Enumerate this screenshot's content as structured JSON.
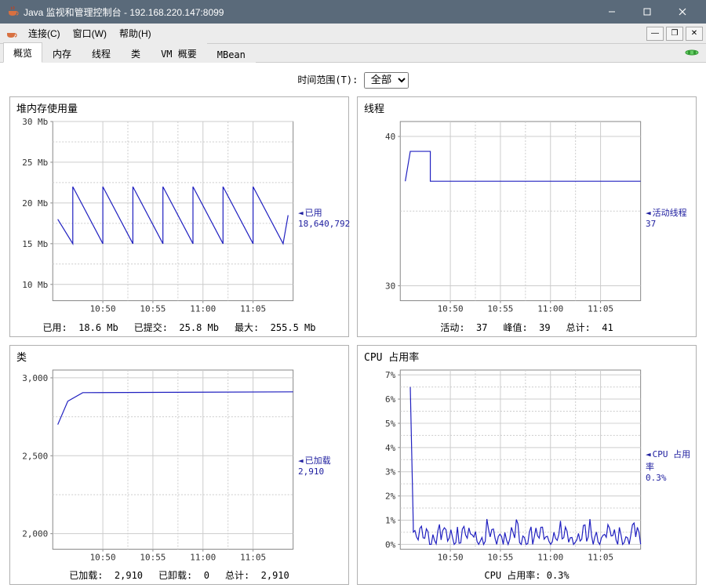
{
  "window": {
    "title": "Java 监视和管理控制台 - 192.168.220.147:8099"
  },
  "menubar": {
    "connect": "连接(C)",
    "window": "窗口(W)",
    "help": "帮助(H)"
  },
  "tabs": {
    "overview": "概览",
    "memory": "内存",
    "threads": "线程",
    "classes": "类",
    "vm": "VM 概要",
    "mbean": "MBean"
  },
  "time_range": {
    "label": "时间范围(T):",
    "selected": "全部"
  },
  "heap": {
    "title": "堆内存使用量",
    "side_label": "已用",
    "side_value": "18,640,792",
    "y_ticks": [
      "10 Mb",
      "15 Mb",
      "20 Mb",
      "25 Mb",
      "30 Mb"
    ],
    "y_vals": [
      10,
      15,
      20,
      25,
      30
    ],
    "x_ticks": [
      "10:50",
      "10:55",
      "11:00",
      "11:05"
    ],
    "x_vals": [
      50,
      55,
      60,
      65
    ],
    "x_range": [
      45,
      69
    ],
    "y_range": [
      8,
      30
    ],
    "series": [
      [
        45.5,
        18
      ],
      [
        47,
        15
      ],
      [
        47,
        22
      ],
      [
        50,
        15
      ],
      [
        50,
        22
      ],
      [
        53,
        15
      ],
      [
        53,
        22
      ],
      [
        56,
        15
      ],
      [
        56,
        22
      ],
      [
        59,
        15
      ],
      [
        59,
        22
      ],
      [
        62,
        15
      ],
      [
        62,
        22
      ],
      [
        65,
        15
      ],
      [
        65,
        22
      ],
      [
        68,
        15
      ],
      [
        68.5,
        18.5
      ]
    ],
    "footer": [
      {
        "k": "已用:",
        "v": "18.6  Mb"
      },
      {
        "k": "已提交:",
        "v": "25.8  Mb"
      },
      {
        "k": "最大:",
        "v": "255.5  Mb"
      }
    ],
    "line_color": "#2020c0"
  },
  "threads": {
    "title": "线程",
    "side_label": "活动线程",
    "side_value": "37",
    "y_ticks": [
      "30",
      "40"
    ],
    "y_vals": [
      30,
      40
    ],
    "x_ticks": [
      "10:50",
      "10:55",
      "11:00",
      "11:05"
    ],
    "x_vals": [
      50,
      55,
      60,
      65
    ],
    "x_range": [
      45,
      69
    ],
    "y_range": [
      29,
      41
    ],
    "series": [
      [
        45.5,
        37
      ],
      [
        46,
        39
      ],
      [
        48,
        39
      ],
      [
        48,
        37
      ],
      [
        69,
        37
      ]
    ],
    "footer": [
      {
        "k": "活动:",
        "v": "37"
      },
      {
        "k": "峰值:",
        "v": "39"
      },
      {
        "k": "总计:",
        "v": "41"
      }
    ],
    "line_color": "#2020c0"
  },
  "classes": {
    "title": "类",
    "side_label": "已加载",
    "side_value": "2,910",
    "y_ticks": [
      "2,000",
      "2,500",
      "3,000"
    ],
    "y_vals": [
      2000,
      2500,
      3000
    ],
    "x_ticks": [
      "10:50",
      "10:55",
      "11:00",
      "11:05"
    ],
    "x_vals": [
      50,
      55,
      60,
      65
    ],
    "x_range": [
      45,
      69
    ],
    "y_range": [
      1900,
      3050
    ],
    "series": [
      [
        45.5,
        2700
      ],
      [
        46.5,
        2850
      ],
      [
        48,
        2905
      ],
      [
        69,
        2910
      ]
    ],
    "footer": [
      {
        "k": "已加载:",
        "v": "2,910"
      },
      {
        "k": "已卸载:",
        "v": "0"
      },
      {
        "k": "总计:",
        "v": "2,910"
      }
    ],
    "line_color": "#2020c0"
  },
  "cpu": {
    "title": "CPU 占用率",
    "side_label": "CPU 占用率",
    "side_value": "0.3%",
    "y_ticks": [
      "0%",
      "1%",
      "2%",
      "3%",
      "4%",
      "5%",
      "6%",
      "7%"
    ],
    "y_vals": [
      0,
      1,
      2,
      3,
      4,
      5,
      6,
      7
    ],
    "x_ticks": [
      "10:50",
      "10:55",
      "11:00",
      "11:05"
    ],
    "x_vals": [
      50,
      55,
      60,
      65
    ],
    "x_range": [
      45,
      69
    ],
    "y_range": [
      -0.2,
      7.2
    ],
    "noise": {
      "spike_x": 46,
      "spike_y": 6.5,
      "base": 0.3,
      "amp": 0.6,
      "count": 140
    },
    "footer_single": "CPU 占用率: 0.3%",
    "line_color": "#2020c0"
  },
  "colors": {
    "grid": "#cccccc",
    "axis": "#888888",
    "panel_border": "#b0b0b0",
    "titlebar": "#5a6a7a"
  }
}
